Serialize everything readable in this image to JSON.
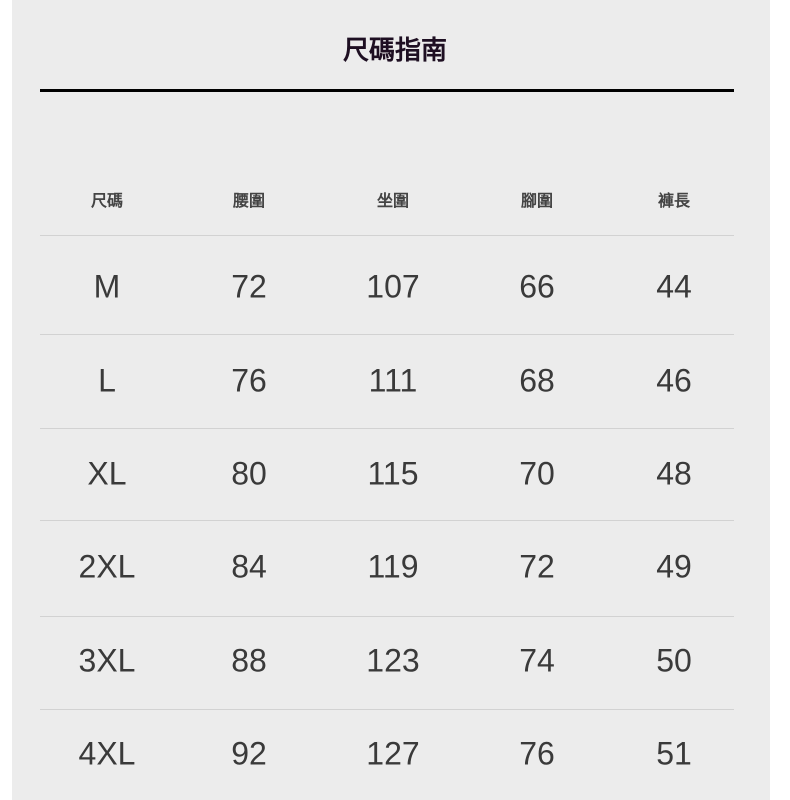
{
  "title": "尺碼指南",
  "headers": [
    "尺碼",
    "腰圍",
    "坐圍",
    "腳圍",
    "褲長"
  ],
  "rows": [
    [
      "M",
      "72",
      "107",
      "66",
      "44"
    ],
    [
      "L",
      "76",
      "111",
      "68",
      "46"
    ],
    [
      "XL",
      "80",
      "115",
      "70",
      "48"
    ],
    [
      "2XL",
      "84",
      "119",
      "72",
      "49"
    ],
    [
      "3XL",
      "88",
      "123",
      "74",
      "50"
    ],
    [
      "4XL",
      "92",
      "127",
      "76",
      "51"
    ]
  ]
}
